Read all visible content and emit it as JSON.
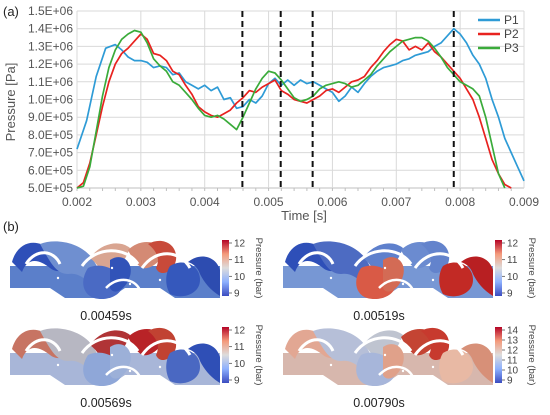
{
  "panels": {
    "a_label": "(a)",
    "b_label": "(b)"
  },
  "chart_data": {
    "type": "line",
    "title": "",
    "xlabel": "Time [s]",
    "ylabel": "Pressure [Pa]",
    "xlim": [
      0.002,
      0.009
    ],
    "ylim": [
      500000,
      1500000
    ],
    "x_ticks": [
      "0.002",
      "0.003",
      "0.004",
      "0.005",
      "0.006",
      "0.007",
      "0.008",
      "0.009"
    ],
    "y_ticks": [
      "5.0E+05",
      "6.0E+05",
      "7.0E+05",
      "8.0E+05",
      "9.0E+05",
      "1.0E+06",
      "1.1E+06",
      "1.2E+06",
      "1.3E+06",
      "1.4E+06",
      "1.5E+06"
    ],
    "grid": true,
    "legend_position": "top-right",
    "vertical_markers": [
      0.00459,
      0.00519,
      0.00569,
      0.0079
    ],
    "series": [
      {
        "name": "P1",
        "color": "#2e9bd6",
        "x": [
          0.002,
          0.00215,
          0.0023,
          0.00245,
          0.0026,
          0.0027,
          0.0028,
          0.0029,
          0.003,
          0.0031,
          0.0032,
          0.0033,
          0.0034,
          0.0035,
          0.0036,
          0.0037,
          0.0038,
          0.0039,
          0.004,
          0.0041,
          0.0042,
          0.0043,
          0.0044,
          0.0045,
          0.0046,
          0.0047,
          0.0048,
          0.0049,
          0.005,
          0.0051,
          0.0052,
          0.0053,
          0.0054,
          0.0055,
          0.0056,
          0.0057,
          0.0058,
          0.0059,
          0.006,
          0.0061,
          0.0062,
          0.0063,
          0.0064,
          0.0065,
          0.0066,
          0.0067,
          0.0068,
          0.0069,
          0.007,
          0.0071,
          0.0072,
          0.0073,
          0.0074,
          0.0075,
          0.0076,
          0.0077,
          0.0078,
          0.0079,
          0.008,
          0.0081,
          0.0082,
          0.0083,
          0.0084,
          0.0085,
          0.0086,
          0.0087,
          0.0088,
          0.0089,
          0.009
        ],
        "y": [
          720000,
          880000,
          1130000,
          1290000,
          1310000,
          1280000,
          1240000,
          1220000,
          1220000,
          1210000,
          1180000,
          1190000,
          1180000,
          1140000,
          1150000,
          1100000,
          1080000,
          1060000,
          1080000,
          1050000,
          1070000,
          1000000,
          1010000,
          950000,
          960000,
          1000000,
          980000,
          1020000,
          1090000,
          1120000,
          1080000,
          1110000,
          1080000,
          1110000,
          1090000,
          1100000,
          1080000,
          1060000,
          1040000,
          990000,
          1020000,
          1070000,
          1040000,
          1090000,
          1130000,
          1160000,
          1180000,
          1190000,
          1200000,
          1220000,
          1230000,
          1250000,
          1260000,
          1270000,
          1300000,
          1320000,
          1360000,
          1400000,
          1370000,
          1320000,
          1250000,
          1200000,
          1120000,
          1000000,
          900000,
          780000,
          700000,
          620000,
          540000
        ]
      },
      {
        "name": "P2",
        "color": "#e8221f",
        "x": [
          0.002,
          0.0021,
          0.0022,
          0.0023,
          0.0024,
          0.0025,
          0.0026,
          0.0027,
          0.0028,
          0.0029,
          0.003,
          0.0031,
          0.0032,
          0.0033,
          0.0034,
          0.0035,
          0.0036,
          0.0037,
          0.0038,
          0.0039,
          0.004,
          0.0041,
          0.0042,
          0.0043,
          0.0044,
          0.0045,
          0.0046,
          0.0047,
          0.0048,
          0.0049,
          0.005,
          0.0051,
          0.0052,
          0.0053,
          0.0054,
          0.0055,
          0.0056,
          0.0057,
          0.0058,
          0.0059,
          0.006,
          0.0061,
          0.0062,
          0.0063,
          0.0064,
          0.0065,
          0.0066,
          0.0067,
          0.0068,
          0.0069,
          0.007,
          0.0071,
          0.0072,
          0.0073,
          0.0074,
          0.0075,
          0.0076,
          0.0077,
          0.0078,
          0.0079,
          0.008,
          0.0081,
          0.0082,
          0.0083,
          0.0084,
          0.0085,
          0.0086,
          0.0087,
          0.0088
        ],
        "y": [
          500000,
          530000,
          640000,
          800000,
          960000,
          1100000,
          1200000,
          1260000,
          1290000,
          1330000,
          1370000,
          1340000,
          1260000,
          1250000,
          1220000,
          1160000,
          1140000,
          1080000,
          1030000,
          960000,
          930000,
          910000,
          900000,
          920000,
          940000,
          980000,
          1010000,
          1050000,
          1040000,
          1070000,
          1090000,
          1110000,
          1050000,
          1030000,
          1000000,
          990000,
          980000,
          1000000,
          1020000,
          1050000,
          1060000,
          1040000,
          1070000,
          1100000,
          1110000,
          1130000,
          1180000,
          1220000,
          1270000,
          1310000,
          1340000,
          1330000,
          1280000,
          1300000,
          1280000,
          1320000,
          1270000,
          1240000,
          1200000,
          1160000,
          1120000,
          1060000,
          1000000,
          900000,
          780000,
          660000,
          580000,
          520000,
          500000
        ]
      },
      {
        "name": "P3",
        "color": "#3aab3a",
        "x": [
          0.002,
          0.0021,
          0.0022,
          0.0023,
          0.0024,
          0.0025,
          0.0026,
          0.0027,
          0.0028,
          0.0029,
          0.003,
          0.0031,
          0.0032,
          0.0033,
          0.0034,
          0.0035,
          0.0036,
          0.0037,
          0.0038,
          0.0039,
          0.004,
          0.0041,
          0.0042,
          0.0043,
          0.0044,
          0.0045,
          0.0046,
          0.0047,
          0.0048,
          0.0049,
          0.005,
          0.0051,
          0.0052,
          0.0053,
          0.0054,
          0.0055,
          0.0056,
          0.0057,
          0.0058,
          0.0059,
          0.006,
          0.0061,
          0.0062,
          0.0063,
          0.0064,
          0.0065,
          0.0066,
          0.0067,
          0.0068,
          0.0069,
          0.007,
          0.0071,
          0.0072,
          0.0073,
          0.0074,
          0.0075,
          0.0076,
          0.0077,
          0.0078,
          0.0079,
          0.008,
          0.0081,
          0.0082,
          0.0083,
          0.0084,
          0.0085,
          0.0086,
          0.0087
        ],
        "y": [
          500000,
          510000,
          620000,
          820000,
          1020000,
          1180000,
          1280000,
          1340000,
          1370000,
          1390000,
          1380000,
          1320000,
          1230000,
          1190000,
          1160000,
          1100000,
          1080000,
          1040000,
          1000000,
          950000,
          910000,
          900000,
          910000,
          890000,
          860000,
          830000,
          900000,
          980000,
          1060000,
          1120000,
          1160000,
          1150000,
          1110000,
          1060000,
          1010000,
          990000,
          1000000,
          1020000,
          1060000,
          1080000,
          1090000,
          1100000,
          1090000,
          1070000,
          1080000,
          1110000,
          1140000,
          1190000,
          1230000,
          1270000,
          1300000,
          1330000,
          1340000,
          1350000,
          1350000,
          1330000,
          1290000,
          1240000,
          1180000,
          1140000,
          1100000,
          1080000,
          1060000,
          1020000,
          900000,
          740000,
          580000,
          500000
        ]
      }
    ]
  },
  "snapshots": [
    {
      "time": "0.00459s",
      "cbar_ticks": [
        "12",
        "11",
        "10",
        "9"
      ],
      "cbar_title": "Pressure (bar)",
      "cbar_style": "cool-warm",
      "colors": {
        "c1": "#2e4fb8",
        "c2": "#6f8fd0",
        "c3": "#d9a591",
        "c4": "#4a6ac4",
        "c5": "#3153b8",
        "c6": "#d48a74",
        "c7": "#c84a3a",
        "c8": "#3558bc",
        "c9": "#2d4cb0",
        "base": "#5b7fca"
      }
    },
    {
      "time": "0.00519s",
      "cbar_ticks": [
        "12",
        "11",
        "10",
        "9"
      ],
      "cbar_title": "Pressure (bar)",
      "cbar_style": "cool-warm",
      "colors": {
        "c1": "#2e4fb8",
        "c2": "#4d6bc2",
        "c3": "#5e80cc",
        "c4": "#d95a46",
        "c5": "#d36b55",
        "c6": "#6b8bd0",
        "c7": "#6383cc",
        "c8": "#c22a25",
        "c9": "#b81f22",
        "base": "#7797d4"
      }
    },
    {
      "time": "0.00569s",
      "cbar_ticks": [
        "12",
        "11",
        "10",
        "9"
      ],
      "cbar_title": "Pressure (bar)",
      "cbar_style": "cool-warm",
      "colors": {
        "c1": "#c77463",
        "c2": "#b7b7c2",
        "c3": "#b03436",
        "c4": "#8fa7d8",
        "c5": "#9cb0d8",
        "c6": "#b82327",
        "c7": "#c14232",
        "c8": "#4a68c2",
        "c9": "#2f4fb6",
        "base": "#a8b6d8"
      }
    },
    {
      "time": "0.00790s",
      "cbar_ticks": [
        "14",
        "13",
        "12",
        "11",
        "10",
        "9"
      ],
      "cbar_title": "Pressure (bar)",
      "cbar_style": "cool-warm",
      "colors": {
        "c1": "#e2a793",
        "c2": "#b6bfd8",
        "c3": "#bfc4d0",
        "c4": "#a7b6da",
        "c5": "#e0a18a",
        "c6": "#c44433",
        "c7": "#c73a2e",
        "c8": "#e8b9a4",
        "c9": "#d79078",
        "base": "#d7b7ad"
      }
    }
  ]
}
